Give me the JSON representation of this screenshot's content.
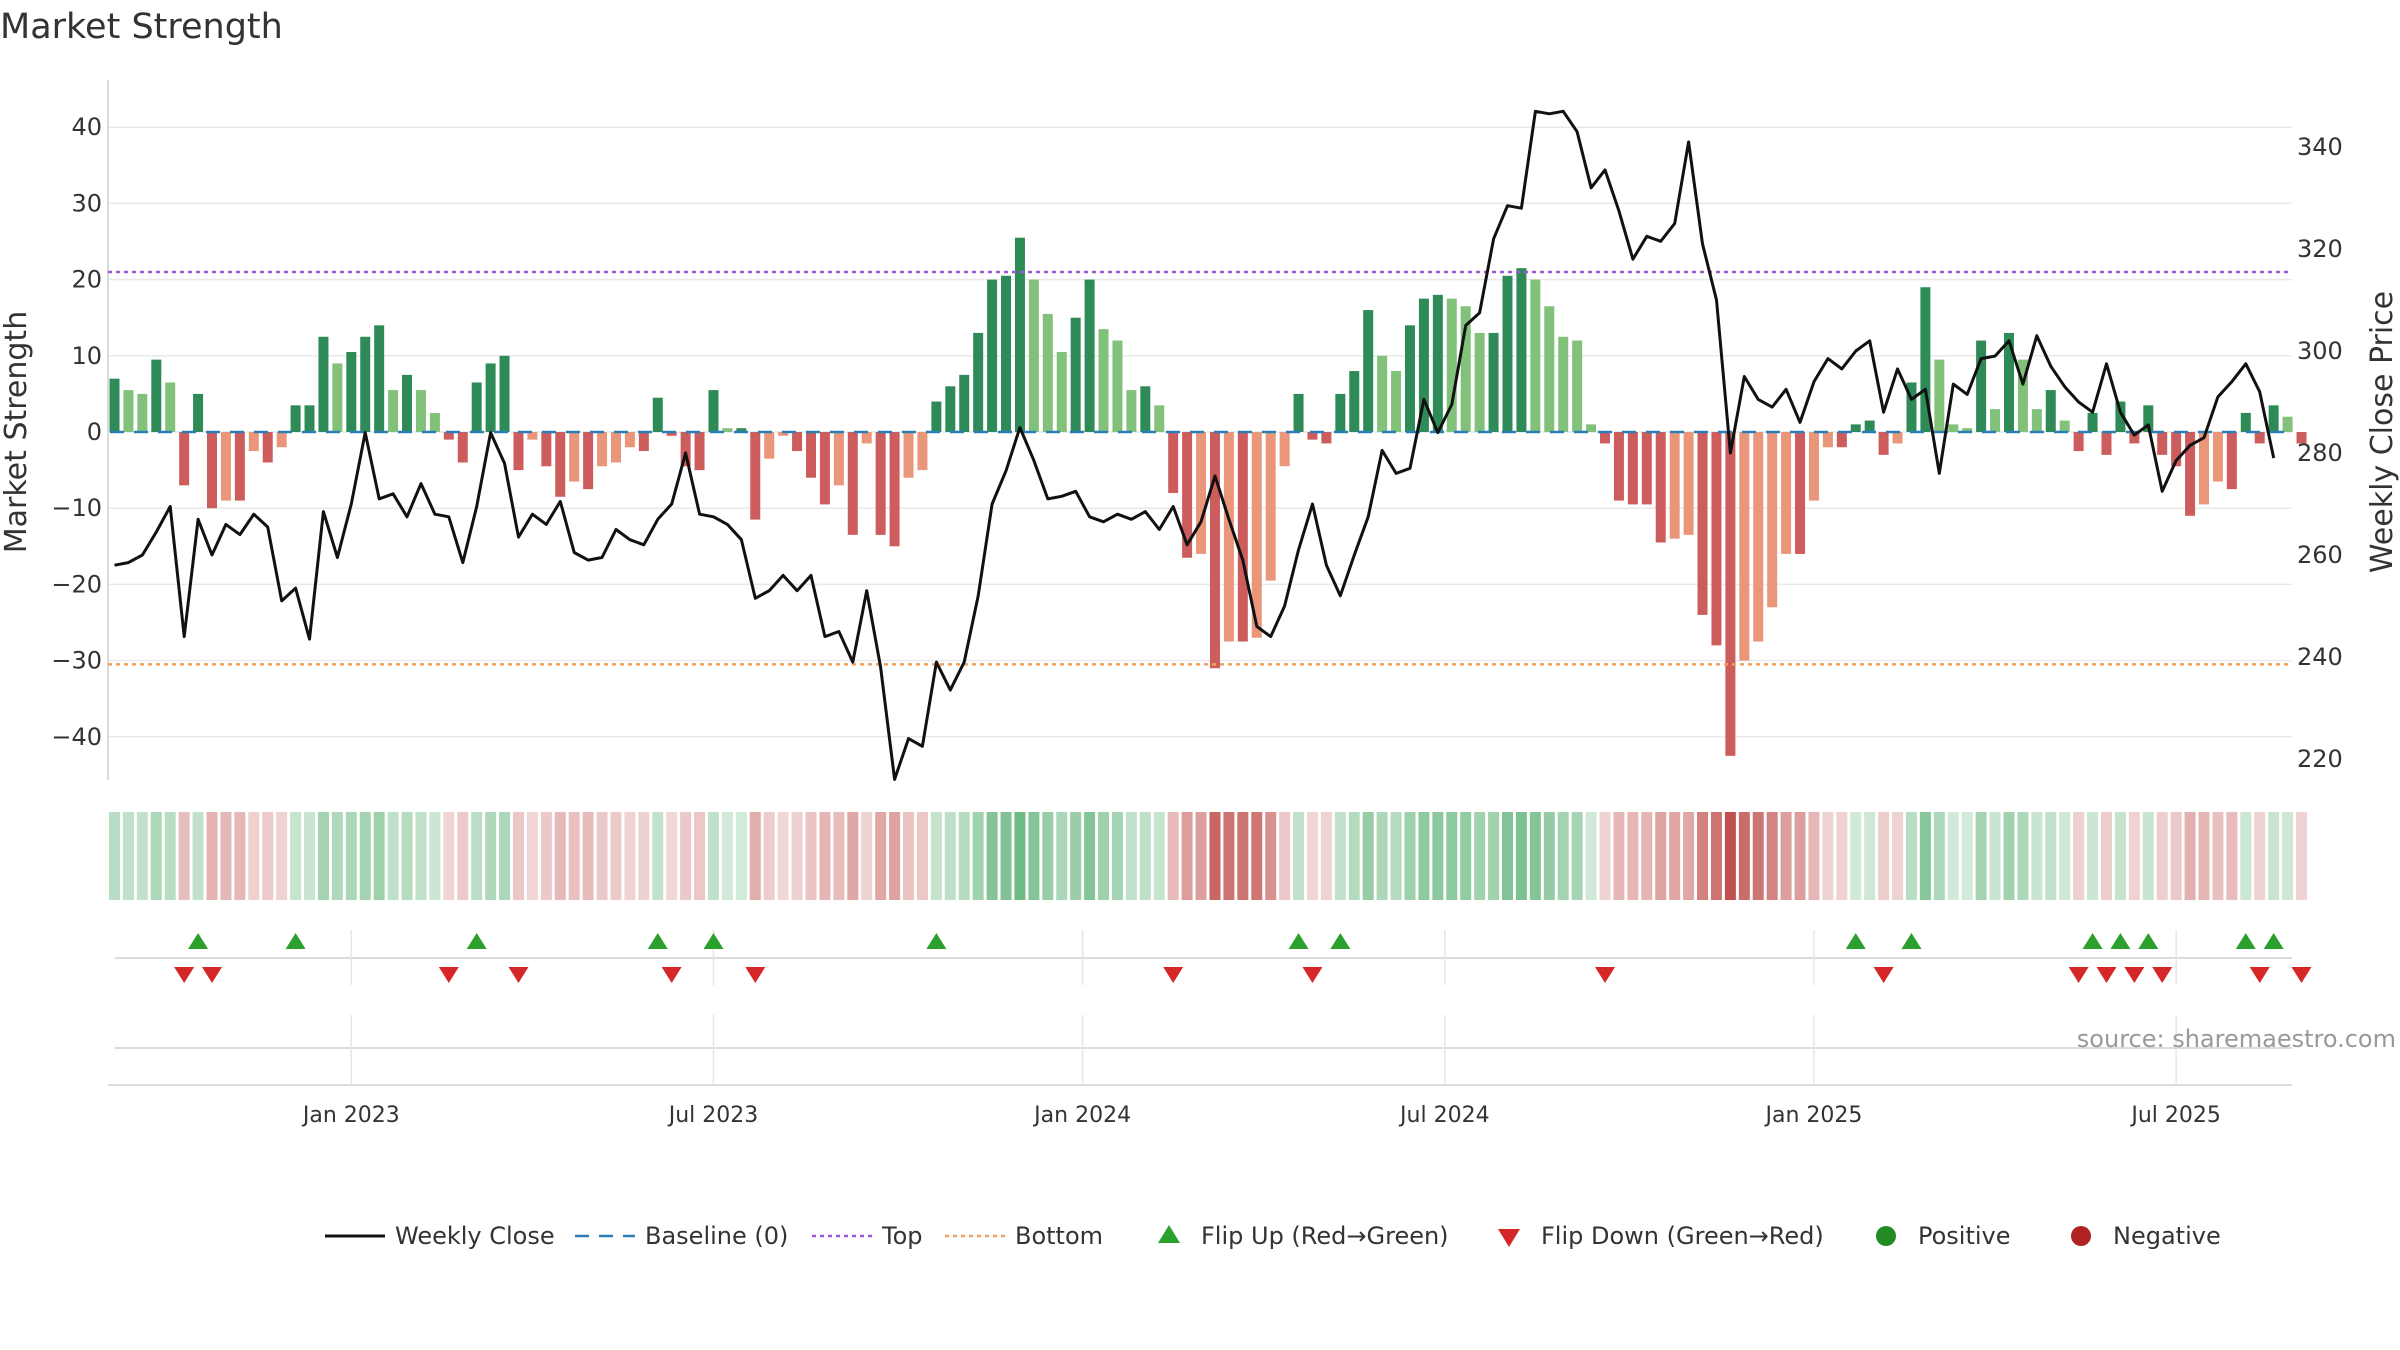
{
  "chart_data": {
    "type": "bar+line",
    "title": "Market Strength",
    "source": "source: sharemaestro.com",
    "ylabel_left": "Market Strength",
    "ylabel_right": "Weekly Close Price",
    "ylim_left": [
      -46,
      46
    ],
    "ylim_right": [
      211,
      348
    ],
    "yticks_left": [
      "40",
      "30",
      "20",
      "10",
      "0",
      "−10",
      "−20",
      "−30",
      "−40"
    ],
    "yticks_left_values": [
      40,
      30,
      20,
      10,
      0,
      -10,
      -20,
      -30,
      -40
    ],
    "yticks_right": [
      "340",
      "320",
      "300",
      "280",
      "260",
      "240",
      "220"
    ],
    "yticks_right_values": [
      340,
      320,
      300,
      280,
      260,
      240,
      220
    ],
    "xticks": [
      "Jan 2023",
      "Jul 2023",
      "Jan 2024",
      "Jul 2024",
      "Jan 2025",
      "Jul 2025"
    ],
    "xticks_week_index": [
      17,
      43,
      69.5,
      95.5,
      122,
      148
    ],
    "top_line": 21,
    "bottom_line": -30.5,
    "baseline": 0,
    "weeks_start": "2022-09-05",
    "strength": [
      7,
      5.5,
      5,
      9.5,
      6.5,
      -7,
      5,
      -10,
      -9,
      -9,
      -2.5,
      -4,
      -2,
      3.5,
      3.5,
      12.5,
      9,
      10.5,
      12.5,
      14,
      5.5,
      7.5,
      5.5,
      2.5,
      -1,
      -4,
      6.5,
      9,
      10,
      -5,
      -1,
      -4.5,
      -8.5,
      -6.5,
      -7.5,
      -4.5,
      -4,
      -2,
      -2.5,
      4.5,
      -0.5,
      -4.5,
      -5,
      5.5,
      0.5,
      0.5,
      -11.5,
      -3.5,
      -0.5,
      -2.5,
      -6,
      -9.5,
      -7,
      -13.5,
      -1.5,
      -13.5,
      -15,
      -6,
      -5,
      4,
      6,
      7.5,
      13,
      20,
      20.5,
      25.5,
      20,
      15.5,
      10.5,
      15,
      20,
      13.5,
      12,
      5.5,
      6,
      3.5,
      -8,
      -16.5,
      -16,
      -31,
      -27.5,
      -27.5,
      -27,
      -19.5,
      -4.5,
      5,
      -1,
      -1.5,
      5,
      8,
      16,
      10,
      8,
      14,
      17.5,
      18,
      17.5,
      16.5,
      13,
      13,
      20.5,
      21.5,
      20,
      16.5,
      12.5,
      12,
      1,
      -1.5,
      -9,
      -9.5,
      -9.5,
      -14.5,
      -14,
      -13.5,
      -24,
      -28,
      -42.5,
      -30,
      -27.5,
      -23,
      -16,
      -16,
      -9,
      -2,
      -2,
      1,
      1.5,
      -3,
      -1.5,
      6.5,
      19,
      9.5,
      1,
      0.5,
      12,
      3,
      13,
      9.5,
      3,
      5.5,
      1.5,
      -2.5,
      2.5,
      -3,
      4,
      -1.5,
      3.5,
      -3,
      -4.5,
      -11,
      -9.5,
      -6.5,
      -7.5,
      2.5,
      -1.5,
      3.5,
      2,
      -1.5
    ],
    "weekly_close": [
      258,
      258.5,
      260,
      264.5,
      269.5,
      244,
      267,
      260,
      266,
      264,
      268,
      265.5,
      251,
      253.5,
      243.5,
      268.5,
      259.5,
      270,
      284,
      271,
      272,
      267.5,
      274,
      268,
      267.5,
      258.5,
      269.5,
      284,
      278,
      263.5,
      268,
      266,
      270.5,
      260.5,
      259,
      259.5,
      265,
      263,
      262,
      267,
      270,
      280,
      268,
      267.5,
      266,
      263,
      251.5,
      253,
      256,
      253,
      256,
      244,
      245,
      239,
      253,
      238,
      216,
      224,
      222.5,
      239,
      233.5,
      239,
      252,
      270,
      276.5,
      285,
      278.5,
      271,
      271.5,
      272.5,
      267.5,
      266.5,
      268,
      267,
      268.5,
      265,
      269.5,
      262,
      266.5,
      275.5,
      267,
      259,
      246,
      244,
      250,
      261,
      270,
      258,
      252,
      260,
      267.5,
      280.5,
      276,
      277,
      290.5,
      284,
      289.5,
      305,
      307.5,
      322,
      328.5,
      328,
      347,
      346.5,
      347,
      343,
      332,
      335.5,
      327.5,
      318,
      322.5,
      321.5,
      325,
      341,
      321,
      310,
      280,
      295,
      290.5,
      289,
      292.5,
      286,
      294,
      298.5,
      296.5,
      300,
      302,
      288,
      296.5,
      290.5,
      292.5,
      276,
      293.5,
      291.5,
      298.5,
      299,
      302,
      293.5,
      303,
      297,
      293,
      290,
      288,
      297.5,
      288,
      283.5,
      285.5,
      272.5,
      278.5,
      281.5,
      283,
      291,
      294,
      297.5,
      292,
      279
    ]
  },
  "legend": [
    {
      "label": "Weekly Close",
      "color": "#111111"
    },
    {
      "label": "Baseline (0)",
      "color": "#2a7fb8"
    },
    {
      "label": "Top",
      "color": "#9b59d6"
    },
    {
      "label": "Bottom",
      "color": "#f0a05a"
    },
    {
      "label": "Flip Up (Red→Green)",
      "color": "#2ca02c"
    },
    {
      "label": "Flip Down (Green→Red)",
      "color": "#d62728"
    },
    {
      "label": "Positive",
      "color": "#228b22"
    },
    {
      "label": "Negative",
      "color": "#b22222"
    }
  ],
  "colors": {
    "pos_strong": "#2e8b57",
    "pos_light": "#82c17a",
    "neg_strong": "#cd5c5c",
    "neg_light": "#e9967a",
    "top": "#9b59d6",
    "bottom": "#f0a05a",
    "baseline": "#2a7fb8",
    "close": "#111111",
    "flip_up": "#2ca02c",
    "flip_down": "#d62728",
    "grid": "#e9e9e9"
  }
}
